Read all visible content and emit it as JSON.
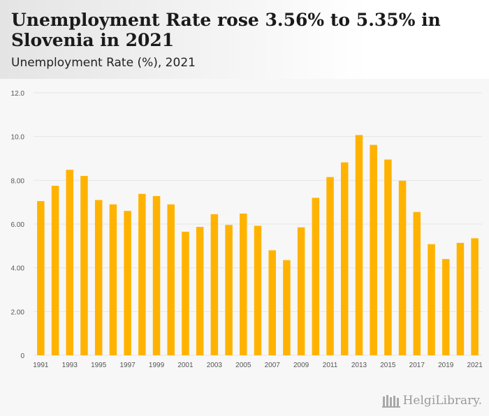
{
  "header": {
    "title": "Unemployment Rate rose 3.56% to 5.35% in Slovenia in 2021",
    "subtitle": "Unemployment Rate (%), 2021"
  },
  "logo": {
    "brand": "HelgiLibrary."
  },
  "colors": {
    "bar": "#FFB300",
    "grid": "#e6e6e6",
    "axis_text": "#555555"
  },
  "chart_data": {
    "type": "bar",
    "title": "Unemployment Rate (%), 2021",
    "xlabel": "",
    "ylabel": "",
    "ylim": [
      0,
      12
    ],
    "yticks": [
      0,
      2,
      4,
      6,
      8,
      10,
      12
    ],
    "ytick_labels": [
      "0",
      "2.00",
      "4.00",
      "6.00",
      "8.00",
      "10.0",
      "12.0"
    ],
    "grid": true,
    "categories": [
      "1991",
      "1992",
      "1993",
      "1994",
      "1995",
      "1996",
      "1997",
      "1998",
      "1999",
      "2000",
      "2001",
      "2002",
      "2003",
      "2004",
      "2005",
      "2006",
      "2007",
      "2008",
      "2009",
      "2010",
      "2011",
      "2012",
      "2013",
      "2014",
      "2015",
      "2016",
      "2017",
      "2018",
      "2019",
      "2020",
      "2021"
    ],
    "xtick_labels_shown": [
      "1991",
      "1993",
      "1995",
      "1997",
      "1999",
      "2001",
      "2003",
      "2005",
      "2007",
      "2009",
      "2011",
      "2013",
      "2015",
      "2017",
      "2019",
      "2021"
    ],
    "values": [
      7.05,
      7.75,
      8.48,
      8.2,
      7.1,
      6.9,
      6.6,
      7.38,
      7.28,
      6.9,
      5.65,
      5.87,
      6.45,
      5.96,
      6.48,
      5.92,
      4.8,
      4.35,
      5.85,
      7.2,
      8.15,
      8.82,
      10.07,
      9.62,
      8.95,
      7.98,
      6.55,
      5.08,
      4.4,
      5.14,
      5.35
    ]
  }
}
